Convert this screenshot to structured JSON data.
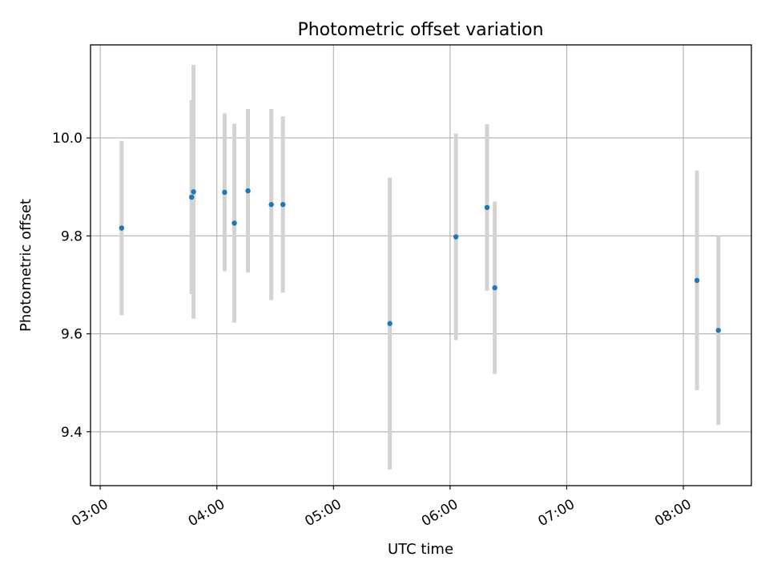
{
  "chart_data": {
    "type": "scatter",
    "title": "Photometric offset variation",
    "xlabel": "UTC time",
    "ylabel": "Photometric offset",
    "x_axis": "time",
    "xlim": [
      "02:55",
      "08:35"
    ],
    "ylim": [
      9.29,
      10.19
    ],
    "xticks": [
      "03:00",
      "04:00",
      "05:00",
      "06:00",
      "07:00",
      "08:00"
    ],
    "yticks": [
      "9.4",
      "9.6",
      "9.8",
      "10.0"
    ],
    "grid": true,
    "point_color": "#1f77b4",
    "errorbar_color": "#d3d3d3",
    "series": [
      {
        "points": [
          {
            "x": "03:11",
            "y": 9.816,
            "err": 0.178
          },
          {
            "x": "03:47",
            "y": 9.879,
            "err": 0.198
          },
          {
            "x": "03:48",
            "y": 9.89,
            "err": 0.259
          },
          {
            "x": "04:04",
            "y": 9.889,
            "err": 0.161
          },
          {
            "x": "04:09",
            "y": 9.826,
            "err": 0.203
          },
          {
            "x": "04:16",
            "y": 9.892,
            "err": 0.167
          },
          {
            "x": "04:28",
            "y": 9.864,
            "err": 0.195
          },
          {
            "x": "04:34",
            "y": 9.864,
            "err": 0.18
          },
          {
            "x": "05:29",
            "y": 9.621,
            "err": 0.298
          },
          {
            "x": "06:03",
            "y": 9.798,
            "err": 0.211
          },
          {
            "x": "06:19",
            "y": 9.858,
            "err": 0.17
          },
          {
            "x": "06:23",
            "y": 9.694,
            "err": 0.176
          },
          {
            "x": "08:07",
            "y": 9.709,
            "err": 0.224
          },
          {
            "x": "08:18",
            "y": 9.607,
            "err": 0.193
          }
        ]
      }
    ]
  }
}
